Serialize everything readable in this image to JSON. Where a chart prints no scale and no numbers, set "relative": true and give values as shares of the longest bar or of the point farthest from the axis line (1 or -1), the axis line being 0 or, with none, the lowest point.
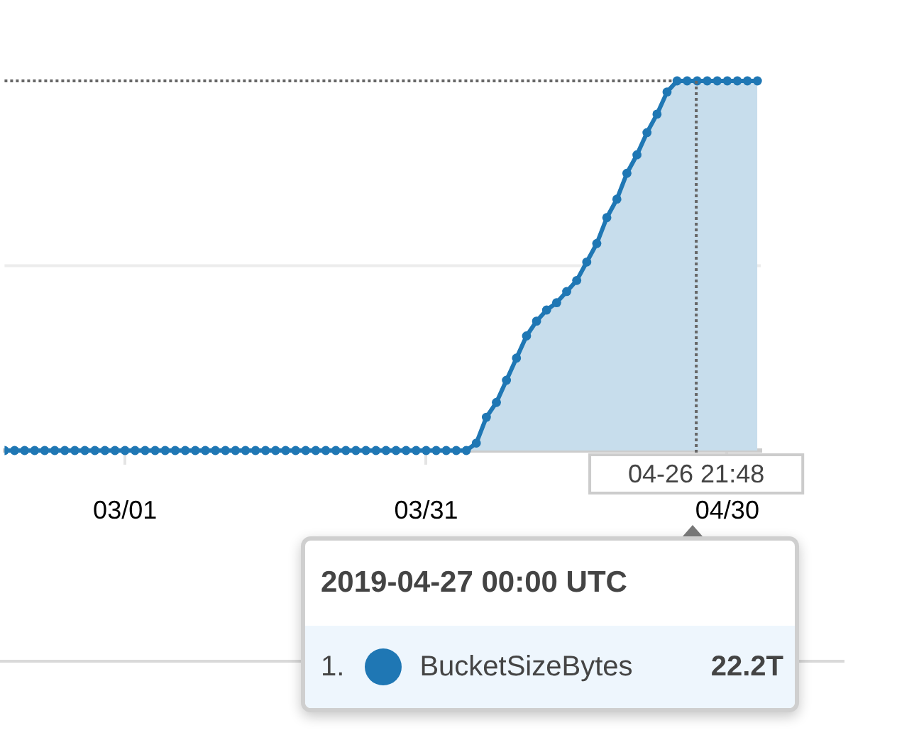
{
  "chart_data": {
    "type": "area",
    "relative": true,
    "x": [
      "2019-02-17",
      "2019-02-18",
      "2019-02-19",
      "2019-02-20",
      "2019-02-21",
      "2019-02-22",
      "2019-02-23",
      "2019-02-24",
      "2019-02-25",
      "2019-02-26",
      "2019-02-27",
      "2019-02-28",
      "2019-03-01",
      "2019-03-02",
      "2019-03-03",
      "2019-03-04",
      "2019-03-05",
      "2019-03-06",
      "2019-03-07",
      "2019-03-08",
      "2019-03-09",
      "2019-03-10",
      "2019-03-11",
      "2019-03-12",
      "2019-03-13",
      "2019-03-14",
      "2019-03-15",
      "2019-03-16",
      "2019-03-17",
      "2019-03-18",
      "2019-03-19",
      "2019-03-20",
      "2019-03-21",
      "2019-03-22",
      "2019-03-23",
      "2019-03-24",
      "2019-03-25",
      "2019-03-26",
      "2019-03-27",
      "2019-03-28",
      "2019-03-29",
      "2019-03-30",
      "2019-03-31",
      "2019-04-01",
      "2019-04-02",
      "2019-04-03",
      "2019-04-04",
      "2019-04-05",
      "2019-04-06",
      "2019-04-07",
      "2019-04-08",
      "2019-04-09",
      "2019-04-10",
      "2019-04-11",
      "2019-04-12",
      "2019-04-13",
      "2019-04-14",
      "2019-04-15",
      "2019-04-16",
      "2019-04-17",
      "2019-04-18",
      "2019-04-19",
      "2019-04-20",
      "2019-04-21",
      "2019-04-22",
      "2019-04-23",
      "2019-04-24",
      "2019-04-25",
      "2019-04-26",
      "2019-04-27",
      "2019-04-28",
      "2019-04-29",
      "2019-04-30",
      "2019-05-01",
      "2019-05-02",
      "2019-05-03"
    ],
    "series": [
      {
        "name": "BucketSizeBytes",
        "color": "#1f77b4",
        "values": [
          0,
          0,
          0,
          0,
          0,
          0,
          0,
          0,
          0,
          0,
          0,
          0,
          0,
          0,
          0,
          0,
          0,
          0,
          0,
          0,
          0,
          0,
          0,
          0,
          0,
          0,
          0,
          0,
          0,
          0,
          0,
          0,
          0,
          0,
          0,
          0,
          0,
          0,
          0,
          0,
          0,
          0,
          0,
          0,
          0,
          0,
          0,
          0.02,
          0.09,
          0.13,
          0.19,
          0.25,
          0.31,
          0.35,
          0.38,
          0.4,
          0.43,
          0.46,
          0.51,
          0.56,
          0.63,
          0.68,
          0.75,
          0.8,
          0.86,
          0.91,
          0.97,
          1,
          1,
          1,
          1,
          1,
          1,
          1,
          1,
          1
        ]
      }
    ],
    "xlim": [
      "2019-02-17",
      "2019-05-03T08:00"
    ],
    "xticks": [
      {
        "value": "2019-03-01",
        "label": "03/01"
      },
      {
        "value": "2019-03-31",
        "label": "03/31"
      },
      {
        "value": "2019-04-30",
        "label": "04/30"
      }
    ],
    "ref_lines": [
      {
        "axis": "y",
        "value": 0.5,
        "color": "#ececec",
        "line_style": "solid"
      },
      {
        "axis": "y",
        "value": 1,
        "color": "#666666",
        "line_style": "dotted"
      },
      {
        "axis": "x",
        "value": "2019-04-26T21:48",
        "label": "04-26 21:48",
        "color": "#666666",
        "line_style": "dotted"
      }
    ],
    "annotations": [
      "2019-04-27 00:00 UTC",
      "1.",
      "22.2T"
    ],
    "legend": "bottom right",
    "marker": "circle",
    "tick_labels": "x"
  }
}
